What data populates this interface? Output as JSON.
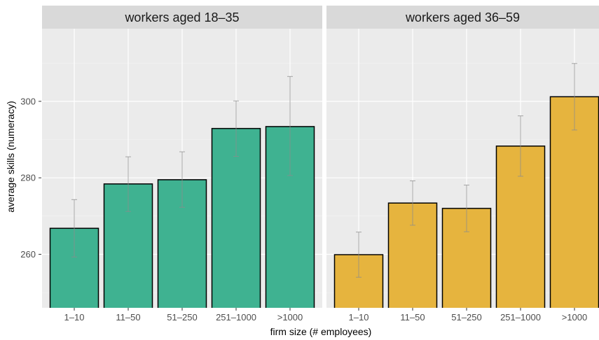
{
  "chart_data": {
    "type": "bar",
    "xlabel": "firm size (# employees)",
    "ylabel": "average skills (numeracy)",
    "categories": [
      "1–10",
      "11–50",
      "51–250",
      "251–1000",
      ">1000"
    ],
    "y_ticks": [
      260,
      280,
      300
    ],
    "ylim": [
      246,
      319
    ],
    "grid": true,
    "error_bars": true,
    "panels": [
      {
        "title": "workers aged 18–35",
        "color": "#3BB08F",
        "values": [
          266.8,
          278.4,
          279.5,
          292.9,
          293.4
        ],
        "err_low": [
          259.3,
          271.2,
          272.3,
          285.6,
          280.6
        ],
        "err_high": [
          274.3,
          285.5,
          286.8,
          300.1,
          306.5
        ]
      },
      {
        "title": "workers aged 36–59",
        "color": "#E6B33A",
        "values": [
          259.9,
          273.4,
          272.0,
          288.3,
          301.2
        ],
        "err_low": [
          254.0,
          267.6,
          265.9,
          280.4,
          292.5
        ],
        "err_high": [
          265.8,
          279.2,
          278.1,
          296.2,
          309.9
        ]
      }
    ]
  }
}
